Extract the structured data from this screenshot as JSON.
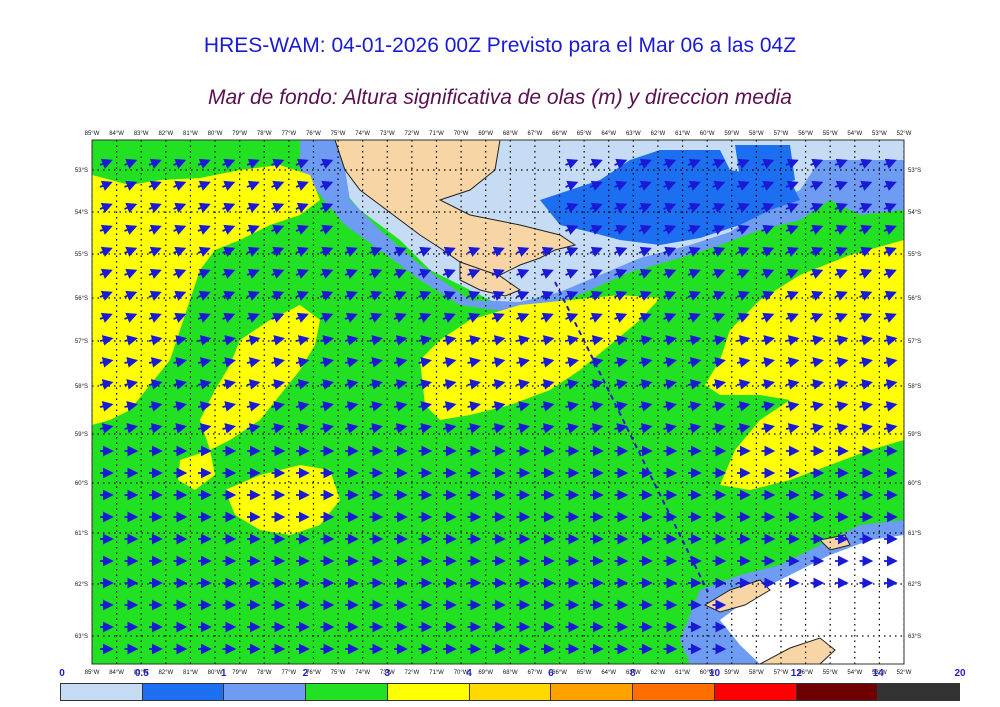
{
  "header": {
    "title": "HRES-WAM: 04-01-2026 00Z Previsto para el Mar 06 a las 04Z",
    "subtitle": "Mar de fondo: Altura significativa de olas (m) y direccion media"
  },
  "map": {
    "lon_labels": [
      "85°W",
      "84°W",
      "83°W",
      "82°W",
      "81°W",
      "80°W",
      "79°W",
      "78°W",
      "77°W",
      "76°W",
      "75°W",
      "74°W",
      "73°W",
      "72°W",
      "71°W",
      "70°W",
      "69°W",
      "68°W",
      "67°W",
      "66°W",
      "65°W",
      "64°W",
      "63°W",
      "62°W",
      "61°W",
      "60°W",
      "59°W",
      "58°W",
      "57°W",
      "56°W",
      "55°W",
      "54°W",
      "53°W",
      "52°W"
    ],
    "lat_labels": [
      "53°S",
      "54°S",
      "55°S",
      "56°S",
      "57°S",
      "58°S",
      "59°S",
      "60°S",
      "61°S",
      "62°S",
      "63°S"
    ],
    "colors": {
      "swell_0_0_5": "#c6dcf5",
      "swell_0_5_1": "#1c6ff0",
      "swell_1_2": "#6e9cf3",
      "swell_2_3": "#22e022",
      "swell_3_4": "#ffff00",
      "swell_4_5": "#ffd900",
      "land": "#f7d5a5",
      "arrow": "#1a1ad6",
      "ice": "#ffffff"
    }
  },
  "legend": {
    "ticks": [
      "0",
      "0.5",
      "1",
      "2",
      "3",
      "4",
      "6",
      "8",
      "10",
      "12",
      "14",
      "20"
    ],
    "colors": [
      "#c6dcf5",
      "#1c6ff0",
      "#6e9cf3",
      "#22e022",
      "#ffff00",
      "#ffd900",
      "#ffa200",
      "#ff6e00",
      "#ff0000",
      "#6e0000",
      "#333333"
    ]
  }
}
